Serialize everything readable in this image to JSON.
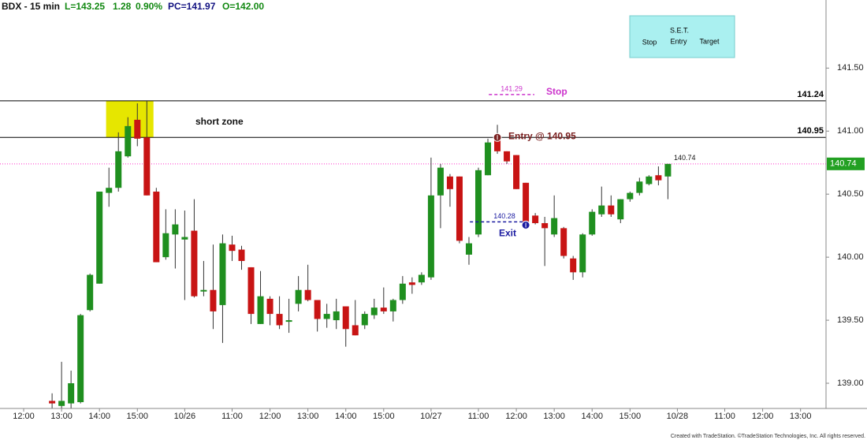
{
  "header": {
    "symbol": "BDX - 15 min",
    "last": "L=143.25",
    "change": "1.28",
    "change_pct": "0.90%",
    "prev_close": "PC=141.97",
    "open": "O=142.00"
  },
  "set_box": {
    "title": "S.E.T.",
    "items": [
      "Stop",
      "Entry",
      "Target"
    ]
  },
  "footer": "Created with TradeStation. ©TradeStation Technologies, Inc. All rights reserved.",
  "chart_data": {
    "type": "candlestick",
    "up_color": "#1f8f1f",
    "down_color": "#c81414",
    "categories": [
      null,
      null,
      "12:00",
      null,
      null,
      null,
      "13:00",
      null,
      null,
      null,
      "14:00",
      null,
      null,
      null,
      "15:00",
      null,
      null,
      null,
      null,
      "10/26",
      null,
      null,
      null,
      null,
      "11:00",
      null,
      null,
      null,
      "12:00",
      null,
      null,
      null,
      "13:00",
      null,
      null,
      null,
      "14:00",
      null,
      null,
      null,
      "15:00",
      null,
      null,
      null,
      null,
      "10/27",
      null,
      null,
      null,
      null,
      "11:00",
      null,
      null,
      null,
      "12:00",
      null,
      null,
      null,
      "13:00",
      null,
      null,
      null,
      "14:00",
      null,
      null,
      null,
      "15:00",
      null,
      null,
      null,
      null,
      "10/28",
      null,
      null,
      null,
      null,
      "11:00",
      null,
      null,
      null,
      "12:00",
      null,
      null,
      null,
      "13:00",
      null,
      null
    ],
    "open": [
      null,
      null,
      null,
      null,
      null,
      138.86,
      138.82,
      138.84,
      138.85,
      139.58,
      139.79,
      140.51,
      140.55,
      140.8,
      141.09,
      140.95,
      140.52,
      140.0,
      140.18,
      140.14,
      140.21,
      139.73,
      139.74,
      139.62,
      140.1,
      140.06,
      139.92,
      139.47,
      139.67,
      139.55,
      139.49,
      139.63,
      139.74,
      139.66,
      139.51,
      139.5,
      139.61,
      139.46,
      139.46,
      139.54,
      139.6,
      139.57,
      139.66,
      139.8,
      139.8,
      139.84,
      140.49,
      140.64,
      140.64,
      140.02,
      140.18,
      140.65,
      140.94,
      140.84,
      140.81,
      140.59,
      140.33,
      140.27,
      140.18,
      140.23,
      139.99,
      139.88,
      140.18,
      140.34,
      140.41,
      140.3,
      140.46,
      140.51,
      140.58,
      140.65,
      140.64,
      null,
      null,
      null,
      null,
      null,
      null,
      null,
      null,
      null,
      null,
      null,
      null,
      null,
      null,
      null,
      null
    ],
    "high": [
      null,
      null,
      null,
      null,
      null,
      138.92,
      139.17,
      139.1,
      139.55,
      139.87,
      140.52,
      140.71,
      140.99,
      141.11,
      141.22,
      141.24,
      140.55,
      140.38,
      140.38,
      140.37,
      140.46,
      139.97,
      140.1,
      140.18,
      140.17,
      140.09,
      139.92,
      139.89,
      139.69,
      139.69,
      139.67,
      139.85,
      139.94,
      139.66,
      139.63,
      139.67,
      139.61,
      139.66,
      139.57,
      139.67,
      139.76,
      139.67,
      139.85,
      139.84,
      139.88,
      140.79,
      140.74,
      140.66,
      140.64,
      140.16,
      140.71,
      140.94,
      141.05,
      140.84,
      140.81,
      140.59,
      140.35,
      140.32,
      140.49,
      140.24,
      140.01,
      140.19,
      140.38,
      140.56,
      140.49,
      140.46,
      140.52,
      140.63,
      140.65,
      140.72,
      140.74,
      null,
      null,
      null,
      null,
      null,
      null,
      null,
      null,
      null,
      null,
      null,
      null,
      null,
      null,
      null,
      null
    ],
    "low": [
      null,
      null,
      null,
      null,
      null,
      138.8,
      138.8,
      138.8,
      138.84,
      139.57,
      139.79,
      140.4,
      140.52,
      140.79,
      140.88,
      140.49,
      139.96,
      139.98,
      139.91,
      139.66,
      139.68,
      139.69,
      139.43,
      139.32,
      139.97,
      139.9,
      139.47,
      139.47,
      139.46,
      139.43,
      139.4,
      139.57,
      139.65,
      139.41,
      139.44,
      139.43,
      139.29,
      139.38,
      139.43,
      139.51,
      139.55,
      139.49,
      139.63,
      139.71,
      139.78,
      139.82,
      140.23,
      140.4,
      140.11,
      139.94,
      140.16,
      140.65,
      140.82,
      140.74,
      140.54,
      140.22,
      140.26,
      139.93,
      140.16,
      139.99,
      139.82,
      139.84,
      140.17,
      140.32,
      140.32,
      140.27,
      140.44,
      140.49,
      140.57,
      140.57,
      140.46,
      null,
      null,
      null,
      null,
      null,
      null,
      null,
      null,
      null,
      null,
      null,
      null,
      null,
      null,
      null,
      null
    ],
    "close": [
      null,
      null,
      null,
      null,
      null,
      138.84,
      138.86,
      139.0,
      139.54,
      139.86,
      140.52,
      140.55,
      140.84,
      141.04,
      140.94,
      140.49,
      139.96,
      140.19,
      140.26,
      140.16,
      139.69,
      139.74,
      139.57,
      140.11,
      140.05,
      139.97,
      139.55,
      139.69,
      139.55,
      139.46,
      139.5,
      139.74,
      139.66,
      139.51,
      139.55,
      139.57,
      139.43,
      139.38,
      139.55,
      139.6,
      139.57,
      139.66,
      139.79,
      139.78,
      139.86,
      140.49,
      140.71,
      140.54,
      140.13,
      140.11,
      140.69,
      140.91,
      140.84,
      140.76,
      140.54,
      140.26,
      140.27,
      140.23,
      140.31,
      140.01,
      139.88,
      140.18,
      140.36,
      140.41,
      140.34,
      140.46,
      140.51,
      140.6,
      140.64,
      140.61,
      140.74,
      null,
      null,
      null,
      null,
      null,
      null,
      null,
      null,
      null,
      null,
      null,
      null,
      null,
      null,
      null,
      null
    ],
    "ylim": [
      138.8,
      142.04
    ],
    "yticks": [
      {
        "value": 139,
        "label": "139.00"
      },
      {
        "value": 139.5,
        "label": "139.50"
      },
      {
        "value": 140,
        "label": "140.00"
      },
      {
        "value": 140.5,
        "label": "140.50"
      },
      {
        "value": 141,
        "label": "141.00"
      },
      {
        "value": 141.5,
        "label": "141.50"
      }
    ],
    "levels": [
      {
        "value": 141.24,
        "color": "#000000"
      },
      {
        "value": 140.95,
        "color": "#000000"
      }
    ],
    "last": {
      "value": 140.74,
      "color": "#ff33cc",
      "box_color": "#22a022"
    },
    "zone": {
      "label": "short zone",
      "color": "#e6e600"
    },
    "stop": {
      "value": 141.29,
      "label": "Stop",
      "color": "#cc33cc"
    },
    "entry": {
      "label": "Entry @ 140.95",
      "color": "#7a1f1f"
    },
    "exit": {
      "value": 140.28,
      "label": "Exit",
      "color": "#1a1aa0"
    }
  }
}
